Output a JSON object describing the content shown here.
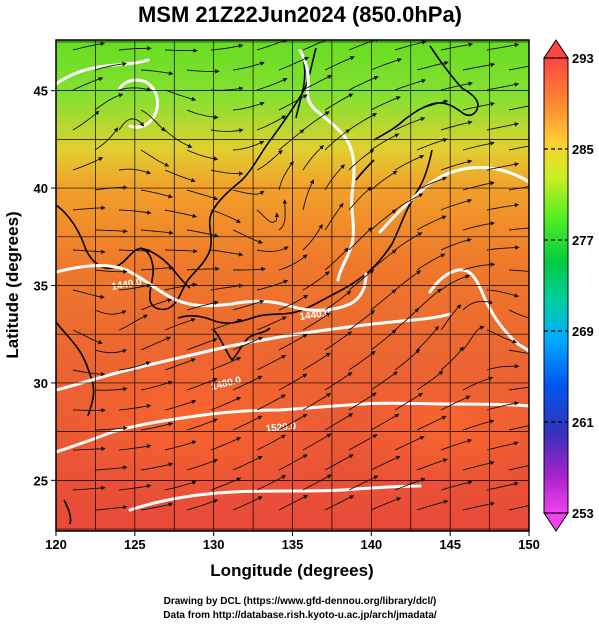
{
  "title": "MSM 21Z22Jun2024 (850.0hPa)",
  "map": {
    "xlabel": "Longitude (degrees)",
    "ylabel": "Latitude  (degrees)",
    "x_ticks": [
      "120",
      "125",
      "130",
      "135",
      "140",
      "145",
      "150"
    ],
    "y_ticks": [
      "25",
      "30",
      "35",
      "40",
      "45"
    ],
    "lon_range": [
      120,
      150
    ],
    "lat_range": [
      22.4,
      47.6
    ],
    "grid": true,
    "contour_labels": [
      "1440.0",
      "1440.0",
      "1480.0",
      "1520.0"
    ]
  },
  "colorbar": {
    "ticks": [
      "293",
      "285",
      "277",
      "269",
      "261",
      "253"
    ],
    "range": [
      253,
      293
    ],
    "colors": [
      "#ff66ff",
      "#cc00cc",
      "#3333cc",
      "#0066ff",
      "#00ccff",
      "#00cc99",
      "#00cc33",
      "#66ff33",
      "#ccff33",
      "#ffcc33",
      "#ff9933",
      "#ff6633",
      "#ff3333",
      "#ff4444"
    ]
  },
  "credits": {
    "line1": "Drawing by DCL (https://www.gfd-dennou.org/library/dcl/)",
    "line2": "Data from http://database.rish.kyoto-u.ac.jp/arch/jmadata/"
  }
}
